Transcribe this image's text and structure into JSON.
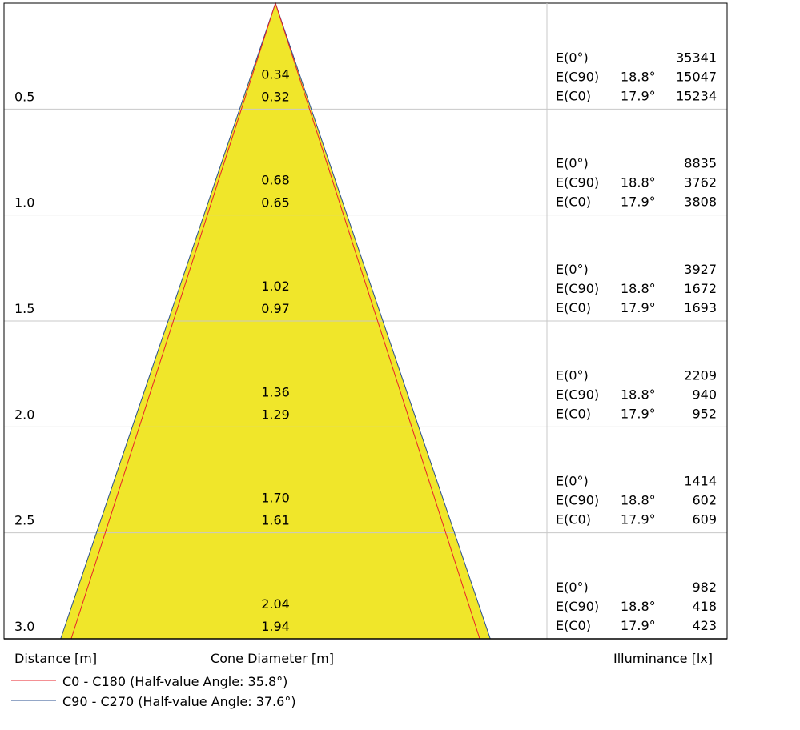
{
  "chart_data": {
    "type": "cone-diagram",
    "xlabel_distance": "Distance [m]",
    "xlabel_cone": "Cone Diameter [m]",
    "xlabel_illuminance": "Illuminance [lx]",
    "colors": {
      "fill": "#f0e62a",
      "c0": "#e8202a",
      "c90": "#2a4f8f",
      "grid": "#c8c8c8",
      "frame": "#000000"
    },
    "legend": [
      {
        "name": "C0 - C180 (Half-value Angle: 35.8°)",
        "color": "#e8202a"
      },
      {
        "name": "C90 - C270 (Half-value Angle: 37.6°)",
        "color": "#2a4f8f"
      }
    ],
    "rows": [
      {
        "distance": "0.5",
        "d_c90": "0.34",
        "d_c0": "0.32",
        "e0_label": "E(0°)",
        "e0": "35341",
        "ec90_label": "E(C90)",
        "ec90_angle": "18.8°",
        "ec90": "15047",
        "ec0_label": "E(C0)",
        "ec0_angle": "17.9°",
        "ec0": "15234"
      },
      {
        "distance": "1.0",
        "d_c90": "0.68",
        "d_c0": "0.65",
        "e0_label": "E(0°)",
        "e0": "8835",
        "ec90_label": "E(C90)",
        "ec90_angle": "18.8°",
        "ec90": "3762",
        "ec0_label": "E(C0)",
        "ec0_angle": "17.9°",
        "ec0": "3808"
      },
      {
        "distance": "1.5",
        "d_c90": "1.02",
        "d_c0": "0.97",
        "e0_label": "E(0°)",
        "e0": "3927",
        "ec90_label": "E(C90)",
        "ec90_angle": "18.8°",
        "ec90": "1672",
        "ec0_label": "E(C0)",
        "ec0_angle": "17.9°",
        "ec0": "1693"
      },
      {
        "distance": "2.0",
        "d_c90": "1.36",
        "d_c0": "1.29",
        "e0_label": "E(0°)",
        "e0": "2209",
        "ec90_label": "E(C90)",
        "ec90_angle": "18.8°",
        "ec90": "940",
        "ec0_label": "E(C0)",
        "ec0_angle": "17.9°",
        "ec0": "952"
      },
      {
        "distance": "2.5",
        "d_c90": "1.70",
        "d_c0": "1.61",
        "e0_label": "E(0°)",
        "e0": "1414",
        "ec90_label": "E(C90)",
        "ec90_angle": "18.8°",
        "ec90": "602",
        "ec0_label": "E(C0)",
        "ec0_angle": "17.9°",
        "ec0": "609"
      },
      {
        "distance": "3.0",
        "d_c90": "2.04",
        "d_c0": "1.94",
        "e0_label": "E(0°)",
        "e0": "982",
        "ec90_label": "E(C90)",
        "ec90_angle": "18.8°",
        "ec90": "418",
        "ec0_label": "E(C0)",
        "ec0_angle": "17.9°",
        "ec0": "423"
      }
    ]
  }
}
